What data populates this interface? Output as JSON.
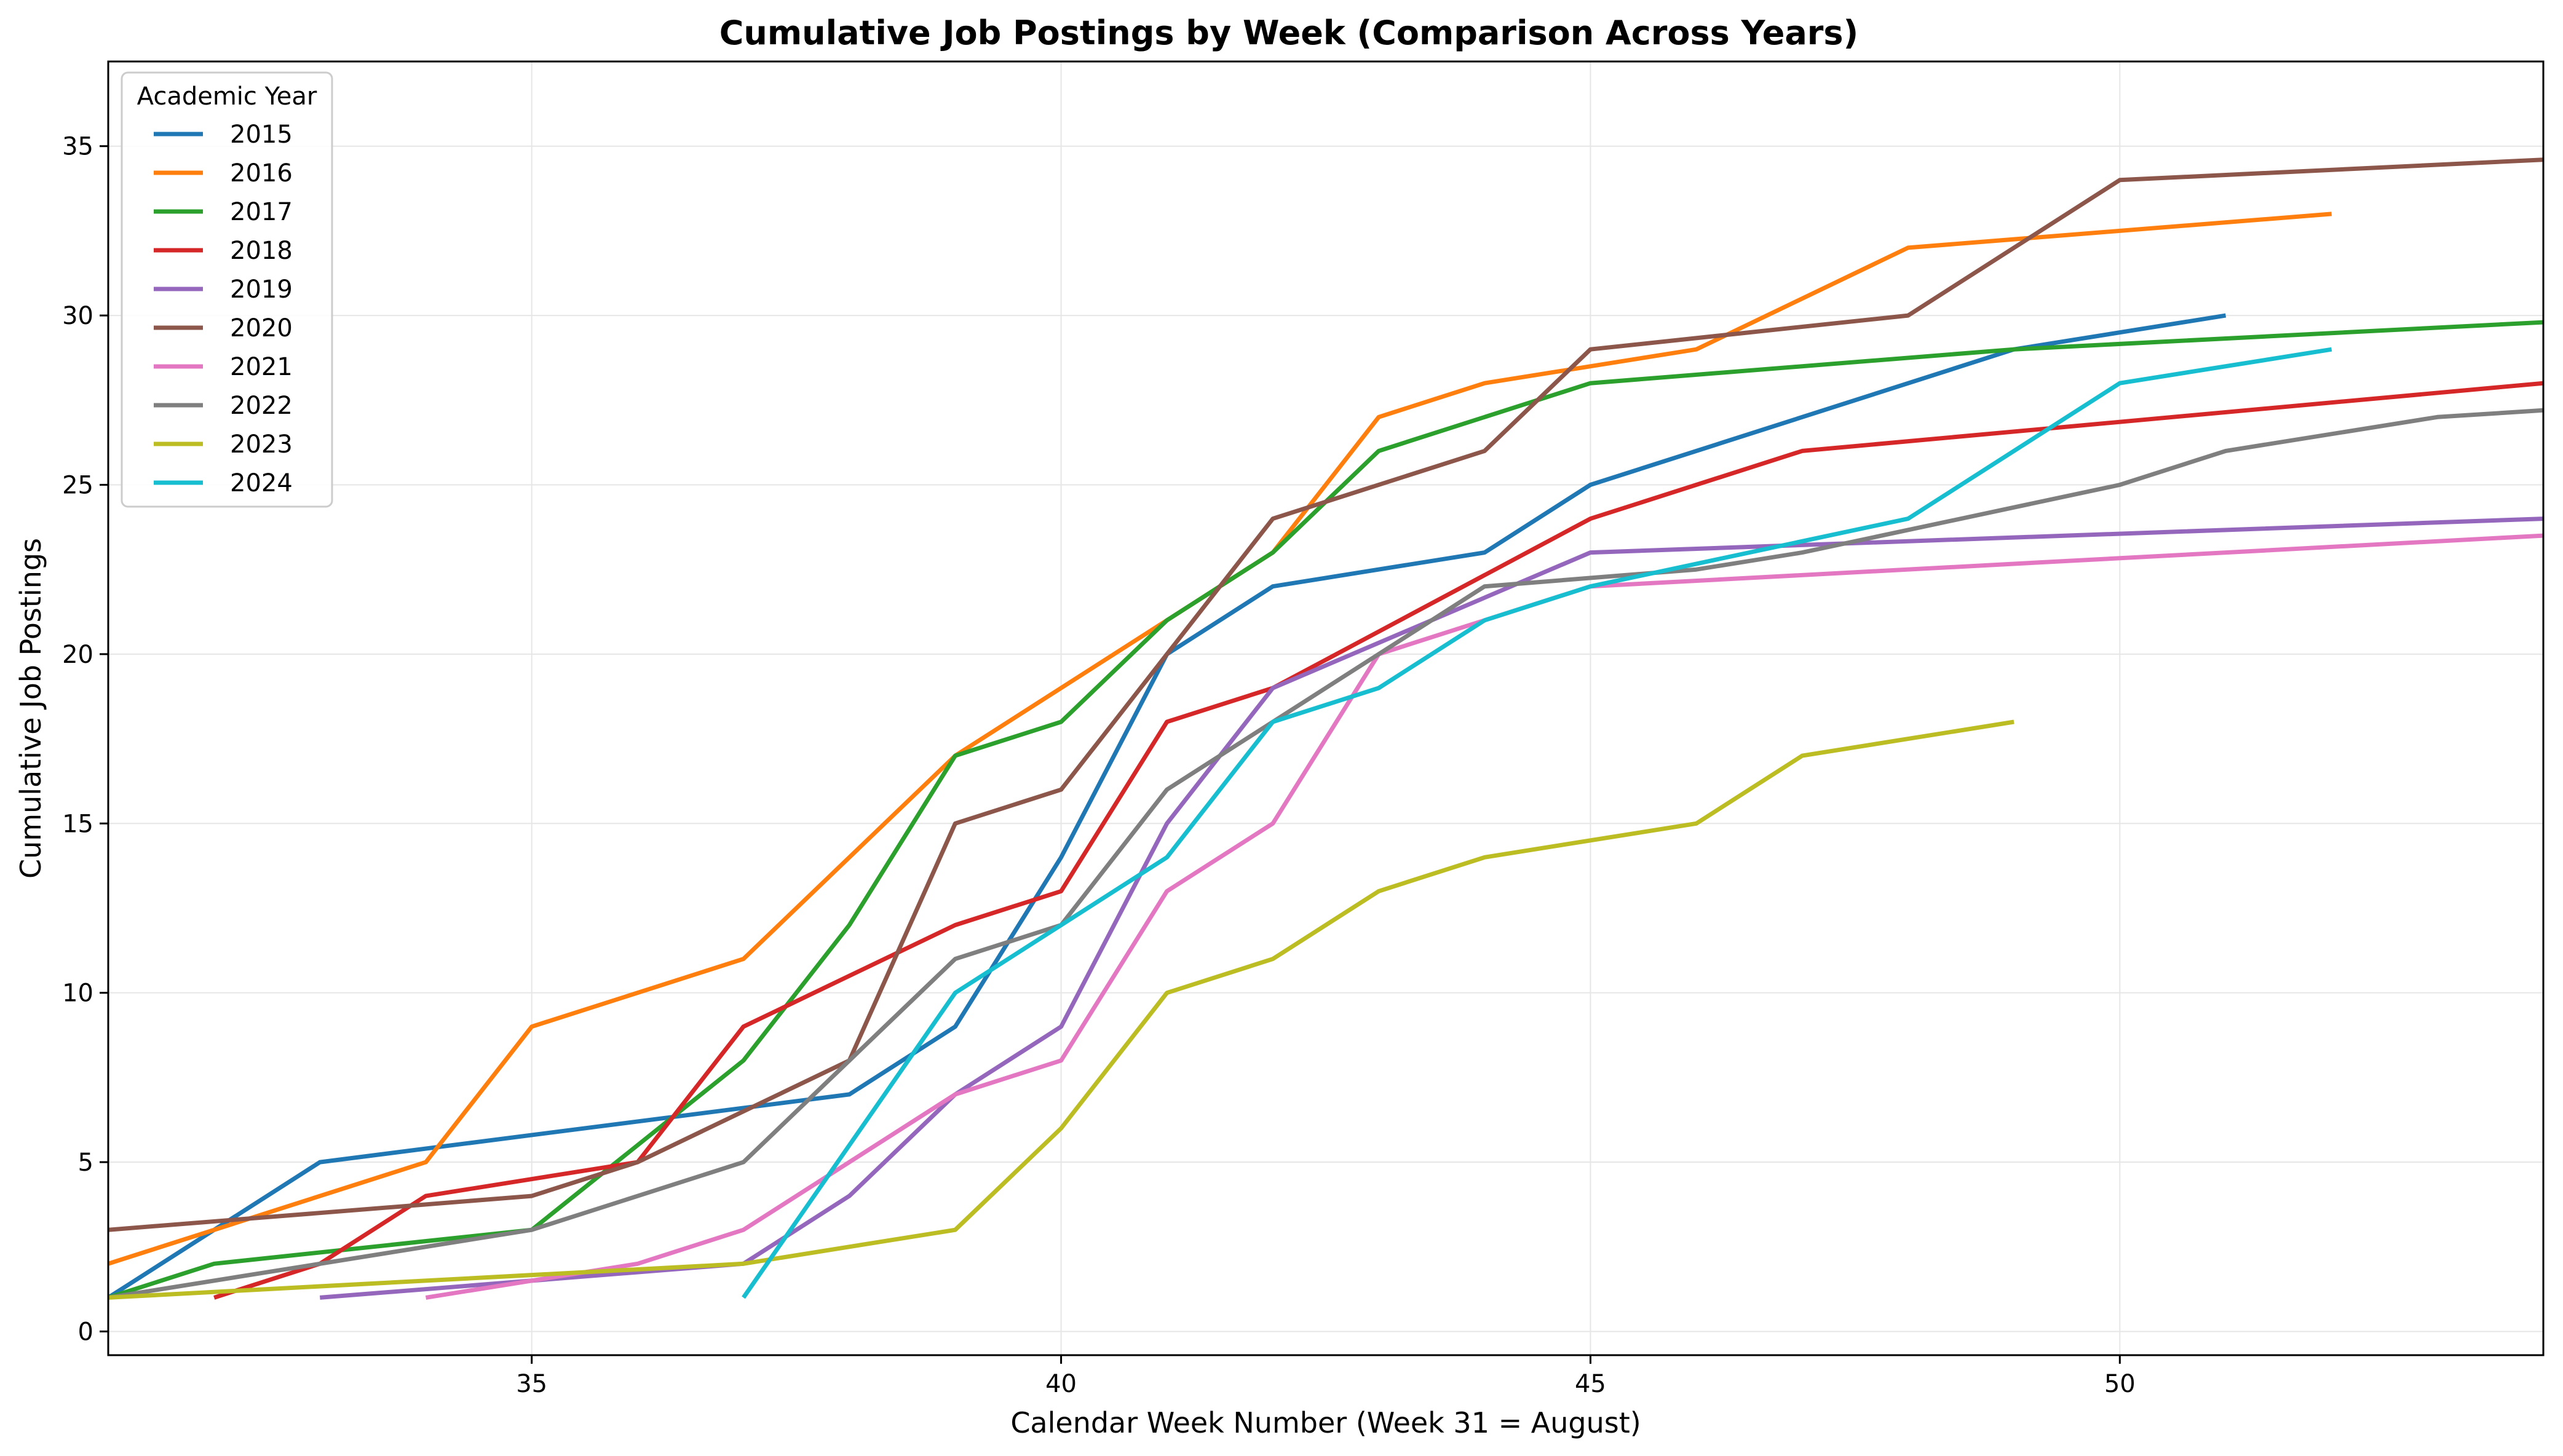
{
  "chart_data": {
    "type": "line",
    "title": "Cumulative Job Postings by Week (Comparison Across Years)",
    "xlabel": "Calendar Week Number (Week 31 = August)",
    "ylabel": "Cumulative Job Postings",
    "xlim": [
      31,
      54
    ],
    "ylim": [
      -0.7,
      37.5
    ],
    "xticks": [
      35,
      40,
      45,
      50
    ],
    "yticks": [
      0,
      5,
      10,
      15,
      20,
      25,
      30,
      35
    ],
    "grid": true,
    "legend": {
      "title": "Academic Year",
      "position": "top-left"
    },
    "series": [
      {
        "name": "2015",
        "color": "#1f77b4",
        "x": [
          31,
          33,
          38,
          39,
          40,
          41,
          42,
          44,
          45,
          49,
          51
        ],
        "y": [
          1,
          5,
          7,
          9,
          14,
          20,
          22,
          23,
          25,
          29,
          30
        ]
      },
      {
        "name": "2016",
        "color": "#ff7f0e",
        "x": [
          31,
          34,
          35,
          37,
          39,
          41,
          42,
          43,
          44,
          46,
          48,
          52
        ],
        "y": [
          2,
          5,
          9,
          11,
          17,
          21,
          23,
          27,
          28,
          29,
          32,
          33
        ]
      },
      {
        "name": "2017",
        "color": "#2ca02c",
        "x": [
          31,
          32,
          35,
          37,
          38,
          39,
          40,
          41,
          42,
          43,
          45,
          49,
          54
        ],
        "y": [
          1,
          2,
          3,
          8,
          12,
          17,
          18,
          21,
          23,
          26,
          28,
          29,
          29.8
        ]
      },
      {
        "name": "2018",
        "color": "#d62728",
        "x": [
          32,
          33,
          34,
          36,
          37,
          39,
          40,
          41,
          42,
          45,
          47,
          54
        ],
        "y": [
          1,
          2,
          4,
          5,
          9,
          12,
          13,
          18,
          19,
          24,
          26,
          28
        ]
      },
      {
        "name": "2019",
        "color": "#9467bd",
        "x": [
          33,
          37,
          38,
          39,
          40,
          41,
          42,
          45,
          54
        ],
        "y": [
          1,
          2,
          4,
          7,
          9,
          15,
          19,
          23,
          24
        ]
      },
      {
        "name": "2020",
        "color": "#8c564b",
        "x": [
          31,
          35,
          36,
          38,
          39,
          40,
          42,
          44,
          45,
          48,
          50,
          54
        ],
        "y": [
          3,
          4,
          5,
          8,
          15,
          16,
          24,
          26,
          29,
          30,
          34,
          34.6
        ]
      },
      {
        "name": "2021",
        "color": "#e377c2",
        "x": [
          34,
          36,
          37,
          39,
          40,
          41,
          42,
          43,
          45,
          54
        ],
        "y": [
          1,
          2,
          3,
          7,
          8,
          13,
          15,
          20,
          22,
          23.5
        ]
      },
      {
        "name": "2022",
        "color": "#7f7f7f",
        "x": [
          31,
          35,
          37,
          39,
          40,
          41,
          44,
          46,
          47,
          50,
          51,
          53,
          54
        ],
        "y": [
          1,
          3,
          5,
          11,
          12,
          16,
          22,
          22.5,
          23,
          25,
          26,
          27,
          27.2
        ]
      },
      {
        "name": "2023",
        "color": "#bcbd22",
        "x": [
          31,
          37,
          39,
          40,
          41,
          42,
          43,
          44,
          46,
          47,
          49
        ],
        "y": [
          1,
          2,
          3,
          6,
          10,
          11,
          13,
          14,
          15,
          17,
          18
        ]
      },
      {
        "name": "2024",
        "color": "#17becf",
        "x": [
          37,
          39,
          40,
          41,
          42,
          43,
          44,
          45,
          48,
          50,
          52
        ],
        "y": [
          1,
          10,
          12,
          14,
          18,
          19,
          21,
          22,
          24,
          28,
          29
        ]
      }
    ]
  }
}
